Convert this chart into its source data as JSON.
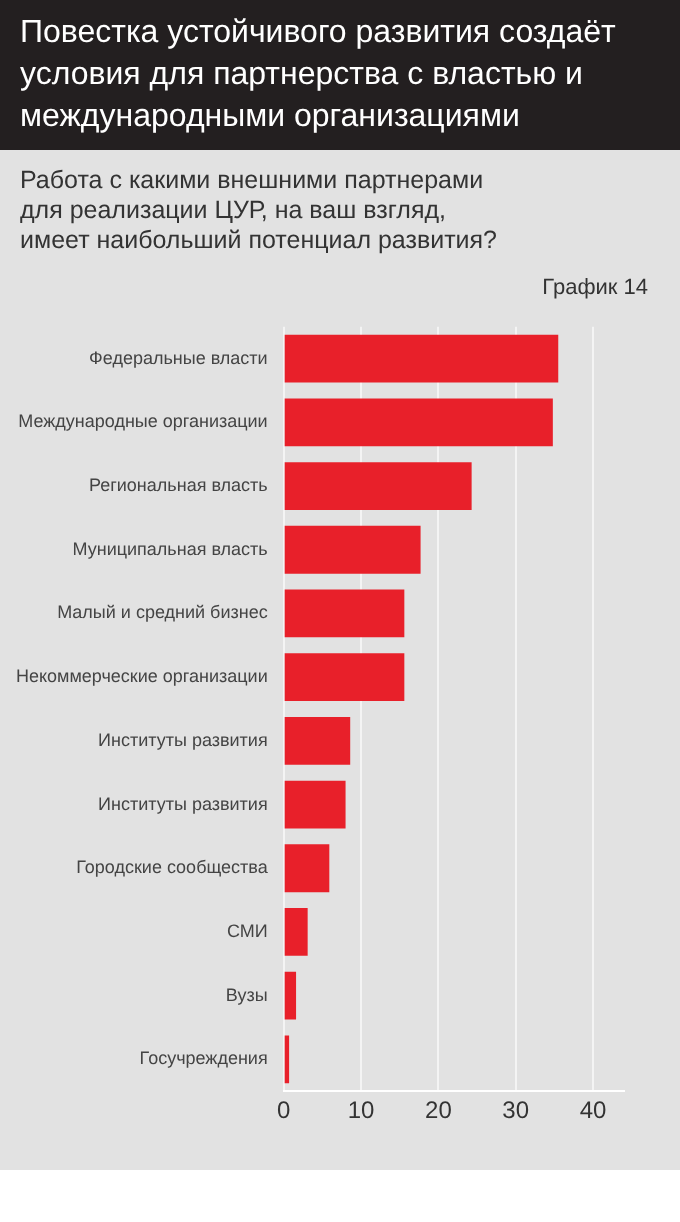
{
  "chart_data": {
    "type": "bar",
    "orientation": "horizontal",
    "title": "Повестка устойчивого развития создаёт условия для партнерства с властью и международными организациями",
    "subtitle": "Работа с какими внешними партнерами для реализации ЦУР, на ваш взгляд, имеет наибольший потенциал развития?",
    "annotations": [
      "График 14"
    ],
    "categories": [
      "Федеральные власти",
      "Международные организации",
      "Региональная власть",
      "Муниципальная власть",
      "Малый и средний бизнес",
      "Некоммерческие организации",
      "Институты развития",
      "Институты развития",
      "Городские сообщества",
      "СМИ",
      "Вузы",
      "Госучреждения"
    ],
    "values": [
      35.5,
      34.8,
      24.3,
      17.7,
      15.6,
      15.6,
      8.6,
      8.0,
      5.9,
      3.1,
      1.6,
      0.7
    ],
    "color": "#e8202a",
    "xlim": [
      0,
      44
    ],
    "xticks": [
      0,
      10,
      20,
      30,
      40
    ],
    "grid": "x"
  }
}
